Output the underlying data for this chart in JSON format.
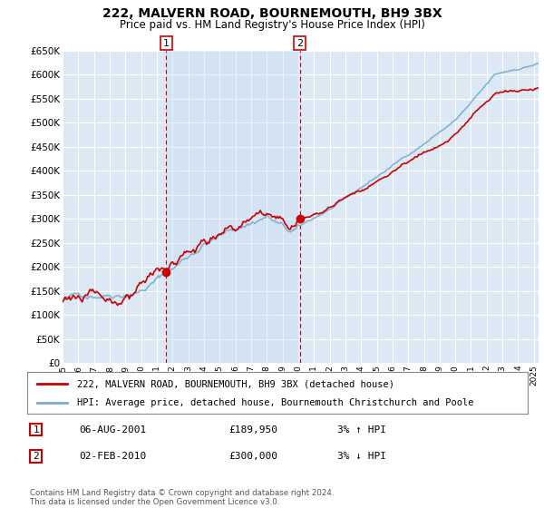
{
  "title": "222, MALVERN ROAD, BOURNEMOUTH, BH9 3BX",
  "subtitle": "Price paid vs. HM Land Registry's House Price Index (HPI)",
  "legend_line1": "222, MALVERN ROAD, BOURNEMOUTH, BH9 3BX (detached house)",
  "legend_line2": "HPI: Average price, detached house, Bournemouth Christchurch and Poole",
  "transaction1_date": "06-AUG-2001",
  "transaction1_price": "£189,950",
  "transaction1_hpi": "3% ↑ HPI",
  "transaction2_date": "02-FEB-2010",
  "transaction2_price": "£300,000",
  "transaction2_hpi": "3% ↓ HPI",
  "footer": "Contains HM Land Registry data © Crown copyright and database right 2024.\nThis data is licensed under the Open Government Licence v3.0.",
  "red_color": "#cc0000",
  "blue_color": "#7aadcf",
  "shade_color": "#ddeeff",
  "plot_bg": "#dce9f5",
  "grid_color": "#ffffff",
  "ylim": [
    0,
    650000
  ],
  "yticks": [
    0,
    50000,
    100000,
    150000,
    200000,
    250000,
    300000,
    350000,
    400000,
    450000,
    500000,
    550000,
    600000,
    650000
  ],
  "transaction1_x": 2001.6,
  "transaction1_y": 189950,
  "transaction2_x": 2010.1,
  "transaction2_y": 300000,
  "xmin": 1995.0,
  "xmax": 2025.3
}
